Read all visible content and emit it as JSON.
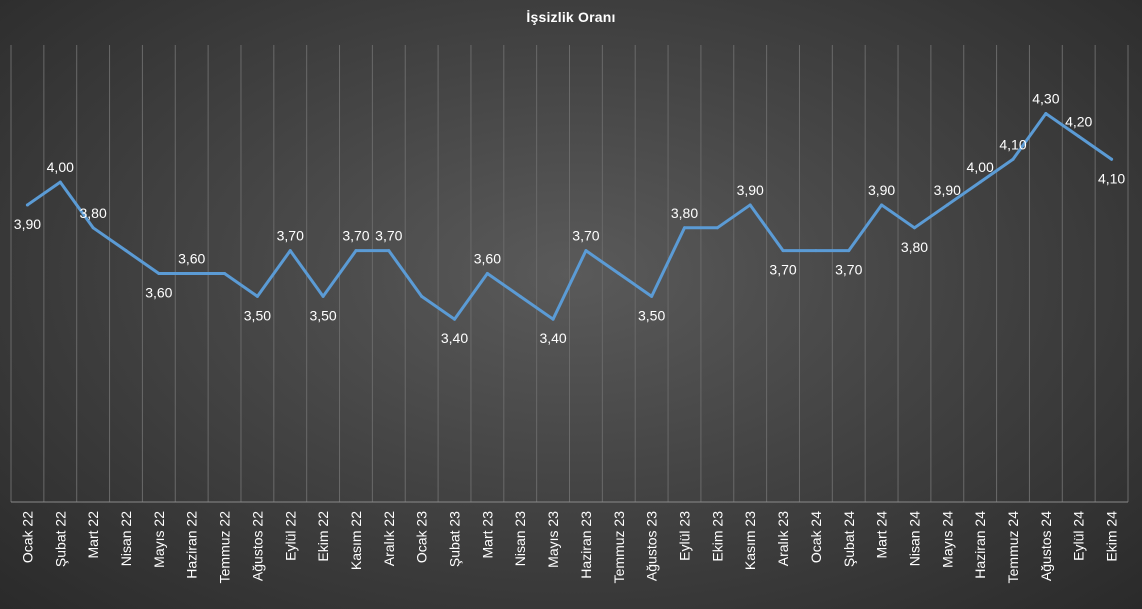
{
  "chart_data": {
    "type": "line",
    "title": "İşsizlik Oranı",
    "xlabel": "",
    "ylabel": "",
    "ylim": [
      2.6,
      4.6
    ],
    "grid": "vertical",
    "legend": "none",
    "colors": {
      "line": "#5b9bd5",
      "text": "#ffffff",
      "grid": "#6a6a6a"
    },
    "categories": [
      "Ocak 22",
      "Şubat 22",
      "Mart 22",
      "Nisan 22",
      "Mayıs 22",
      "Haziran 22",
      "Temmuz 22",
      "Ağustos 22",
      "Eylül 22",
      "Ekim 22",
      "Kasım 22",
      "Aralık 22",
      "Ocak 23",
      "Şubat 23",
      "Mart 23",
      "Nisan 23",
      "Mayıs 23",
      "Haziran 23",
      "Temmuz 23",
      "Ağustos 23",
      "Eylül 23",
      "Ekim 23",
      "Kasım 23",
      "Aralık 23",
      "Ocak 24",
      "Şubat 24",
      "Mart 24",
      "Nisan 24",
      "Mayıs 24",
      "Haziran 24",
      "Temmuz 24",
      "Ağustos 24",
      "Eylül 24",
      "Ekim 24"
    ],
    "values": [
      3.9,
      4.0,
      3.8,
      3.7,
      3.6,
      3.6,
      3.6,
      3.5,
      3.7,
      3.5,
      3.7,
      3.7,
      3.5,
      3.4,
      3.6,
      3.5,
      3.4,
      3.7,
      3.6,
      3.5,
      3.8,
      3.8,
      3.9,
      3.7,
      3.7,
      3.7,
      3.9,
      3.8,
      3.9,
      4.0,
      4.1,
      4.3,
      4.2,
      4.1
    ],
    "data_labels": [
      "3,90",
      "4,00",
      "3,80",
      null,
      "3,60",
      "3,60",
      null,
      "3,50",
      "3,70",
      "3,50",
      "3,70",
      "3,70",
      null,
      "3,40",
      "3,60",
      null,
      "3,40",
      "3,70",
      null,
      "3,50",
      "3,80",
      null,
      "3,90",
      "3,70",
      null,
      "3,70",
      "3,90",
      "3,80",
      "3,90",
      "4,00",
      "4,10",
      "4,30",
      "4,20",
      "4,10"
    ]
  }
}
